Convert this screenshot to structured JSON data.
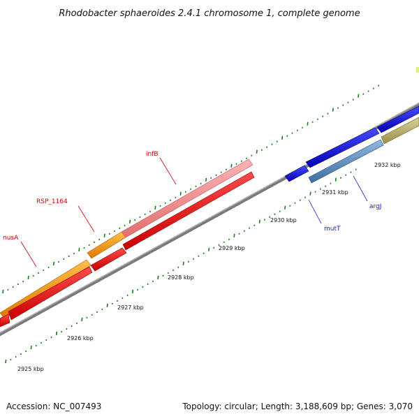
{
  "title": "Rhodobacter sphaeroides 2.4.1 chromosome 1, complete genome",
  "footer": {
    "accession": "Accession: NC_007493",
    "summary": "Topology: circular; Length: 3,188,609 bp; Genes: 3,070"
  },
  "colors": {
    "backbone": "#8a8a8a",
    "tick": "#1a7a1a",
    "label_red": "#cc0000",
    "label_blue": "#1a1acc"
  },
  "kbp_labels": [
    "2925 kbp",
    "2926 kbp",
    "2927 kbp",
    "2928 kbp",
    "2929 kbp",
    "2930 kbp",
    "2931 kbp",
    "2932 kbp"
  ],
  "gene_labels": {
    "nusA": "nusA",
    "rsp": "RSP_1164",
    "infB": "infB",
    "mutT": "mutT",
    "argJ": "argJ"
  }
}
